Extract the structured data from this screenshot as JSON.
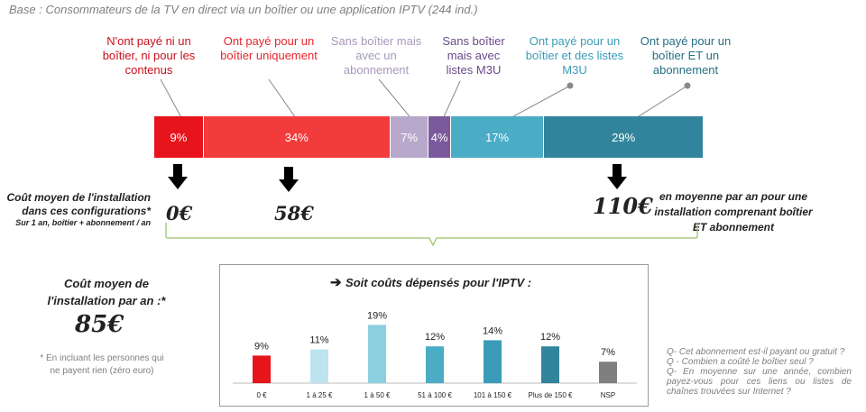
{
  "base_text": "Base : Consommateurs de la TV en direct via un boîtier ou une application IPTV (244 ind.)",
  "segments": [
    {
      "label": "N'ont payé ni un boîtier, ni pour les contenus",
      "value": 9,
      "value_label": "9%",
      "color": "#e8141c",
      "label_color": "#c8101a"
    },
    {
      "label": "Ont payé pour un boîtier uniquement",
      "value": 34,
      "value_label": "34%",
      "color": "#f23c3c",
      "label_color": "#e8262c"
    },
    {
      "label": "Sans boîtier mais avec un abonnement",
      "value": 7,
      "value_label": "7%",
      "color": "#b8a8cc",
      "label_color": "#a898bc"
    },
    {
      "label": "Sans boîtier mais avec listes M3U",
      "value": 4,
      "value_label": "4%",
      "color": "#7a5a9c",
      "label_color": "#6a4a8a"
    },
    {
      "label": "Ont payé pour un boîtier et des listes M3U",
      "value": 17,
      "value_label": "17%",
      "color": "#4bacc6",
      "label_color": "#3a9cb8"
    },
    {
      "label": "Ont payé pour un boîtier ET un abonnement",
      "value": 29,
      "value_label": "29%",
      "color": "#31849b",
      "label_color": "#276f84"
    }
  ],
  "cost_config": {
    "label": "Coût moyen de l'installation dans ces configurations*",
    "sub": "Sur 1 an, boîtier + abonnement / an",
    "val1": "0€",
    "val2": "58€",
    "val3": "110€",
    "val3_note": "en moyenne par an pour une installation comprenant boîtier ET abonnement"
  },
  "avg": {
    "label": "Coût moyen de l'installation par an :*",
    "value": "85€",
    "note": "* En incluant les personnes qui ne payent rien (zéro euro)"
  },
  "questions": [
    "Q- Cet abonnement est-il payant ou gratuit ?",
    "Q - Combien a coûté le boîtier seul ?",
    "Q- En moyenne sur une année, combien payez-vous pour ces liens ou listes de chaînes trouvées sur Internet ?"
  ],
  "chart_data": {
    "type": "bar",
    "title": "Soit coûts dépensés pour l'IPTV :",
    "categories": [
      "0 €",
      "1 à 25 €",
      "1 à 50 €",
      "51 à 100 €",
      "101 à 150 €",
      "Plus de 150 €",
      "NSP"
    ],
    "values": [
      9,
      11,
      19,
      12,
      14,
      12,
      7
    ],
    "value_labels": [
      "9%",
      "11%",
      "19%",
      "12%",
      "14%",
      "12%",
      "7%"
    ],
    "colors": [
      "#e8141c",
      "#bde3ee",
      "#8ccfe0",
      "#4bacc6",
      "#3a9cb8",
      "#31849b",
      "#7f7f7f"
    ],
    "ylim": [
      0,
      20
    ],
    "grid": false
  }
}
